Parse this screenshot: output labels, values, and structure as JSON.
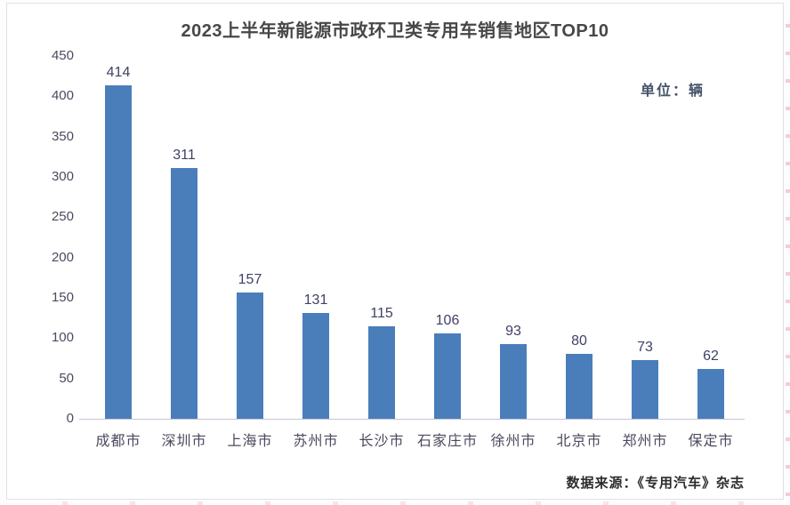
{
  "page": {
    "title": "2023上半年新能源市政环卫类专用车销售地区TOP10",
    "unit_label": "单位：辆",
    "source_label": "数据来源：《专用汽车》杂志"
  },
  "chart_data": {
    "type": "bar",
    "title": "2023上半年新能源市政环卫类专用车销售地区TOP10",
    "categories": [
      "成都市",
      "深圳市",
      "上海市",
      "苏州市",
      "长沙市",
      "石家庄市",
      "徐州市",
      "北京市",
      "郑州市",
      "保定市"
    ],
    "values": [
      414,
      311,
      157,
      131,
      115,
      106,
      93,
      80,
      73,
      62
    ],
    "unit": "辆",
    "xlabel": "",
    "ylabel": "",
    "ylim": [
      0,
      450
    ],
    "ytick_step": 50,
    "grid": false,
    "legend_position": "none",
    "data_labels": true,
    "bar_color": "#4A7EBB",
    "value_label_color": "#3F4166",
    "axis_label_color": "#4A4A5E",
    "source": "数据来源：《专用汽车》杂志"
  }
}
